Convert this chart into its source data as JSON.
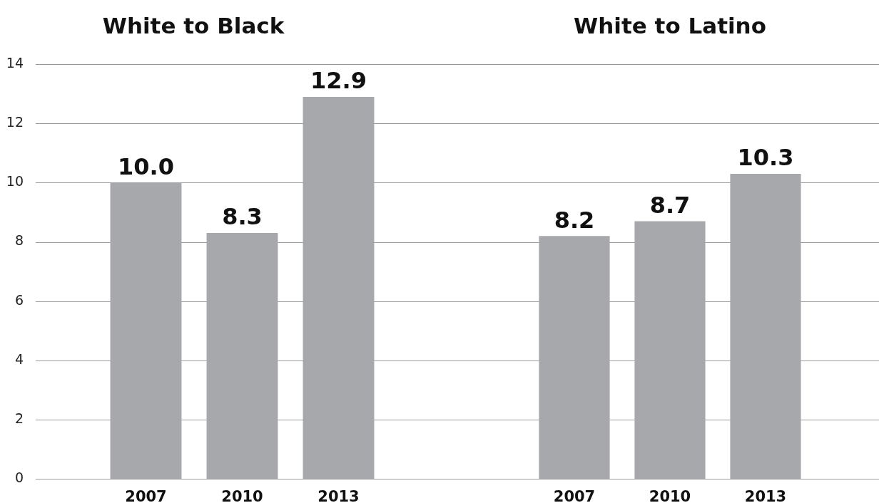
{
  "chart_data": [
    {
      "type": "bar",
      "title": "White to Black",
      "categories": [
        "2007",
        "2010",
        "2013"
      ],
      "values": [
        10.0,
        8.3,
        12.9
      ],
      "value_labels": [
        "10.0",
        "8.3",
        "12.9"
      ],
      "color": "#a7a8ab",
      "ylim": [
        0,
        14
      ],
      "yticks": [
        0,
        2,
        4,
        6,
        8,
        10,
        12,
        14
      ],
      "grid": "y"
    },
    {
      "type": "bar",
      "title": "White to Latino",
      "categories": [
        "2007",
        "2010",
        "2013"
      ],
      "values": [
        8.2,
        8.7,
        10.3
      ],
      "value_labels": [
        "8.2",
        "8.7",
        "10.3"
      ],
      "color": "#a7a8ab",
      "ylim": [
        0,
        14
      ],
      "yticks": [
        0,
        2,
        4,
        6,
        8,
        10,
        12,
        14
      ],
      "grid": "y",
      "tick_labels": "x"
    }
  ]
}
